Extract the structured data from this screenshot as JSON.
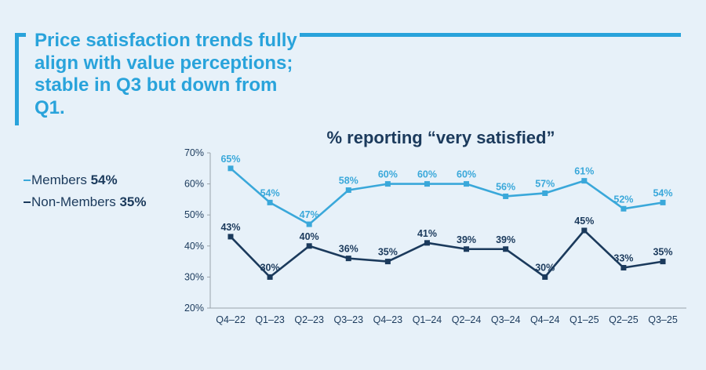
{
  "headline": "Price satisfaction trends fully align with value perceptions; stable in Q3 but down from Q1.",
  "colors": {
    "accent": "#29a3db",
    "members": "#3aa8da",
    "non_members": "#1b3a5c",
    "background": "#e7f1f9"
  },
  "legend": {
    "members_label": "Members",
    "members_value": "54%",
    "non_members_label": "Non-Members",
    "non_members_value": "35%"
  },
  "chart_data": {
    "type": "line",
    "title": "% reporting “very satisfied”",
    "xlabel": "",
    "ylabel": "",
    "ylim": [
      20,
      70
    ],
    "yticks": [
      20,
      30,
      40,
      50,
      60,
      70
    ],
    "ytick_labels": [
      "20%",
      "30%",
      "40%",
      "50%",
      "60%",
      "70%"
    ],
    "grid": false,
    "legend_position": "left",
    "categories": [
      "Q4–22",
      "Q1–23",
      "Q2–23",
      "Q3–23",
      "Q4–23",
      "Q1–24",
      "Q2–24",
      "Q3–24",
      "Q4–24",
      "Q1–25",
      "Q2–25",
      "Q3–25"
    ],
    "series": [
      {
        "name": "Members",
        "color": "#3aa8da",
        "values": [
          65,
          54,
          47,
          58,
          60,
          60,
          60,
          56,
          57,
          61,
          52,
          54
        ],
        "labels": [
          "65%",
          "54%",
          "47%",
          "58%",
          "60%",
          "60%",
          "60%",
          "56%",
          "57%",
          "61%",
          "52%",
          "54%"
        ]
      },
      {
        "name": "Non-Members",
        "color": "#1b3a5c",
        "values": [
          43,
          30,
          40,
          36,
          35,
          41,
          39,
          39,
          30,
          45,
          33,
          35
        ],
        "labels": [
          "43%",
          "30%",
          "40%",
          "36%",
          "35%",
          "41%",
          "39%",
          "39%",
          "30%",
          "45%",
          "33%",
          "35%"
        ]
      }
    ]
  }
}
